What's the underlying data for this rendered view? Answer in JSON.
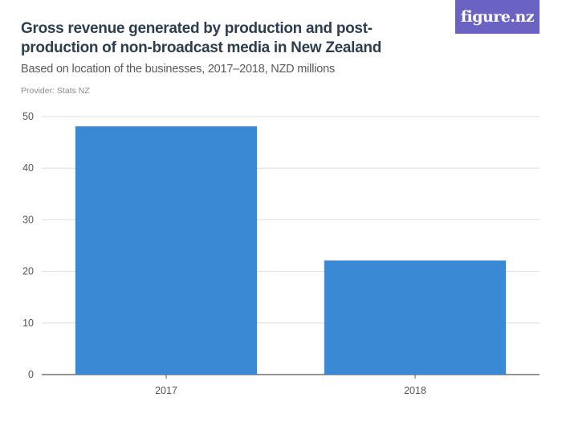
{
  "header": {
    "title": "Gross revenue generated by production and post-production of non-broadcast media in New Zealand",
    "subtitle": "Based on location of the businesses, 2017–2018, NZD millions",
    "provider": "Provider: Stats NZ"
  },
  "logo": {
    "text": "figure.nz",
    "color": "#6b63c4"
  },
  "chart_data": {
    "type": "bar",
    "categories": [
      "2017",
      "2018"
    ],
    "values": [
      48.1,
      22.1
    ],
    "ylim": [
      0,
      50
    ],
    "yticks": [
      0,
      10,
      20,
      30,
      40,
      50
    ],
    "grid": true,
    "bar_color": "#3a89d4",
    "xlabel": "",
    "ylabel": ""
  }
}
